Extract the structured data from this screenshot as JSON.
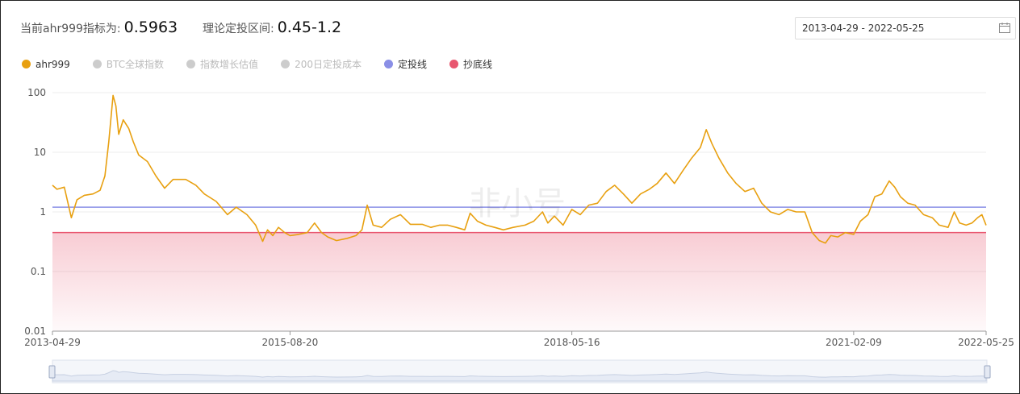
{
  "header": {
    "indicator_label": "当前ahr999指标为:",
    "indicator_value": "0.5963",
    "range_label": "理论定投区间:",
    "range_value": "0.45-1.2",
    "date_range": "2013-04-29 - 2022-05-25"
  },
  "colors": {
    "ahr999": "#e8a010",
    "dca": "#8a8fe6",
    "bottom": "#e8566f",
    "inactive": "#cccccc"
  },
  "legend": [
    {
      "label": "ahr999",
      "active": true,
      "color": "#e8a010"
    },
    {
      "label": "BTC全球指数",
      "active": false,
      "color": "#cccccc"
    },
    {
      "label": "指数增长估值",
      "active": false,
      "color": "#cccccc"
    },
    {
      "label": "200日定投成本",
      "active": false,
      "color": "#cccccc"
    },
    {
      "label": "定投线",
      "active": true,
      "color": "#8a8fe6"
    },
    {
      "label": "抄底线",
      "active": true,
      "color": "#e8566f"
    }
  ],
  "watermark": "非小号",
  "chart_data": {
    "type": "line",
    "yscale": "log",
    "ylim": [
      0.01,
      100
    ],
    "yticks": [
      "100",
      "10",
      "1",
      "0.1",
      "0.01"
    ],
    "xlim": [
      "2013-04-29",
      "2022-05-25"
    ],
    "xticks": [
      "2013-04-29",
      "2015-08-20",
      "2018-05-16",
      "2021-02-09",
      "2022-05-25"
    ],
    "reference_lines": [
      {
        "name": "定投线",
        "value": 1.2
      },
      {
        "name": "抄底线",
        "value": 0.45
      }
    ],
    "series": [
      {
        "name": "ahr999",
        "points": [
          [
            "2013-04-29",
            2.8
          ],
          [
            "2013-05-15",
            2.4
          ],
          [
            "2013-06-10",
            2.6
          ],
          [
            "2013-07-05",
            0.8
          ],
          [
            "2013-07-25",
            1.6
          ],
          [
            "2013-08-20",
            1.9
          ],
          [
            "2013-09-20",
            2.0
          ],
          [
            "2013-10-15",
            2.3
          ],
          [
            "2013-11-01",
            4.0
          ],
          [
            "2013-11-15",
            15.0
          ],
          [
            "2013-11-30",
            90.0
          ],
          [
            "2013-12-10",
            60.0
          ],
          [
            "2013-12-20",
            20.0
          ],
          [
            "2014-01-05",
            35.0
          ],
          [
            "2014-01-25",
            25.0
          ],
          [
            "2014-02-10",
            15.0
          ],
          [
            "2014-03-01",
            9.0
          ],
          [
            "2014-04-01",
            7.0
          ],
          [
            "2014-05-01",
            4.0
          ],
          [
            "2014-06-01",
            2.5
          ],
          [
            "2014-07-01",
            3.5
          ],
          [
            "2014-08-15",
            3.5
          ],
          [
            "2014-09-20",
            2.8
          ],
          [
            "2014-10-20",
            2.0
          ],
          [
            "2014-12-01",
            1.5
          ],
          [
            "2015-01-10",
            0.9
          ],
          [
            "2015-02-10",
            1.2
          ],
          [
            "2015-03-20",
            0.9
          ],
          [
            "2015-04-20",
            0.6
          ],
          [
            "2015-05-15",
            0.32
          ],
          [
            "2015-06-01",
            0.5
          ],
          [
            "2015-06-20",
            0.4
          ],
          [
            "2015-07-10",
            0.55
          ],
          [
            "2015-08-01",
            0.45
          ],
          [
            "2015-08-20",
            0.4
          ],
          [
            "2015-09-20",
            0.42
          ],
          [
            "2015-10-20",
            0.45
          ],
          [
            "2015-11-15",
            0.65
          ],
          [
            "2015-12-10",
            0.45
          ],
          [
            "2016-01-01",
            0.38
          ],
          [
            "2016-02-01",
            0.33
          ],
          [
            "2016-03-10",
            0.36
          ],
          [
            "2016-04-10",
            0.4
          ],
          [
            "2016-05-01",
            0.5
          ],
          [
            "2016-05-20",
            1.3
          ],
          [
            "2016-06-10",
            0.6
          ],
          [
            "2016-07-10",
            0.55
          ],
          [
            "2016-08-10",
            0.75
          ],
          [
            "2016-09-15",
            0.9
          ],
          [
            "2016-10-20",
            0.62
          ],
          [
            "2016-12-01",
            0.62
          ],
          [
            "2017-01-01",
            0.55
          ],
          [
            "2017-02-01",
            0.6
          ],
          [
            "2017-03-01",
            0.6
          ],
          [
            "2017-04-01",
            0.55
          ],
          [
            "2017-05-01",
            0.5
          ],
          [
            "2017-05-20",
            0.95
          ],
          [
            "2017-06-15",
            0.7
          ],
          [
            "2017-07-15",
            0.6
          ],
          [
            "2017-08-15",
            0.55
          ],
          [
            "2017-09-15",
            0.5
          ],
          [
            "2017-10-20",
            0.55
          ],
          [
            "2017-12-01",
            0.6
          ],
          [
            "2018-01-01",
            0.7
          ],
          [
            "2018-02-01",
            1.0
          ],
          [
            "2018-02-20",
            0.65
          ],
          [
            "2018-03-15",
            0.85
          ],
          [
            "2018-04-15",
            0.6
          ],
          [
            "2018-05-16",
            1.1
          ],
          [
            "2018-06-15",
            0.9
          ],
          [
            "2018-07-15",
            1.3
          ],
          [
            "2018-08-15",
            1.4
          ],
          [
            "2018-09-15",
            2.2
          ],
          [
            "2018-10-15",
            2.8
          ],
          [
            "2018-11-15",
            2.0
          ],
          [
            "2018-12-15",
            1.4
          ],
          [
            "2019-01-15",
            2.0
          ],
          [
            "2019-02-15",
            2.4
          ],
          [
            "2019-03-15",
            3.0
          ],
          [
            "2019-04-15",
            4.5
          ],
          [
            "2019-05-15",
            3.0
          ],
          [
            "2019-06-15",
            5.0
          ],
          [
            "2019-07-15",
            8.0
          ],
          [
            "2019-08-15",
            12.0
          ],
          [
            "2019-09-05",
            24.0
          ],
          [
            "2019-09-25",
            14.0
          ],
          [
            "2019-10-20",
            8.0
          ],
          [
            "2019-11-20",
            4.5
          ],
          [
            "2019-12-20",
            3.0
          ],
          [
            "2020-01-20",
            2.2
          ],
          [
            "2020-02-20",
            2.5
          ],
          [
            "2020-03-20",
            1.4
          ],
          [
            "2020-04-20",
            1.0
          ],
          [
            "2020-05-20",
            0.9
          ],
          [
            "2020-06-20",
            1.1
          ],
          [
            "2020-07-20",
            1.0
          ],
          [
            "2020-08-20",
            1.0
          ],
          [
            "2020-09-15",
            0.45
          ],
          [
            "2020-10-10",
            0.33
          ],
          [
            "2020-11-01",
            0.3
          ],
          [
            "2020-11-20",
            0.4
          ],
          [
            "2020-12-15",
            0.38
          ],
          [
            "2021-01-10",
            0.45
          ],
          [
            "2021-02-09",
            0.42
          ],
          [
            "2021-03-05",
            0.7
          ],
          [
            "2021-04-01",
            0.9
          ],
          [
            "2021-04-25",
            1.8
          ],
          [
            "2021-05-20",
            2.0
          ],
          [
            "2021-06-15",
            3.3
          ],
          [
            "2021-07-05",
            2.6
          ],
          [
            "2021-07-25",
            1.8
          ],
          [
            "2021-08-20",
            1.4
          ],
          [
            "2021-09-15",
            1.3
          ],
          [
            "2021-10-15",
            0.9
          ],
          [
            "2021-11-15",
            0.8
          ],
          [
            "2021-12-10",
            0.6
          ],
          [
            "2022-01-10",
            0.55
          ],
          [
            "2022-02-01",
            1.0
          ],
          [
            "2022-02-20",
            0.65
          ],
          [
            "2022-03-15",
            0.6
          ],
          [
            "2022-04-05",
            0.65
          ],
          [
            "2022-04-25",
            0.8
          ],
          [
            "2022-05-10",
            0.9
          ],
          [
            "2022-05-25",
            0.5963
          ]
        ]
      }
    ]
  }
}
